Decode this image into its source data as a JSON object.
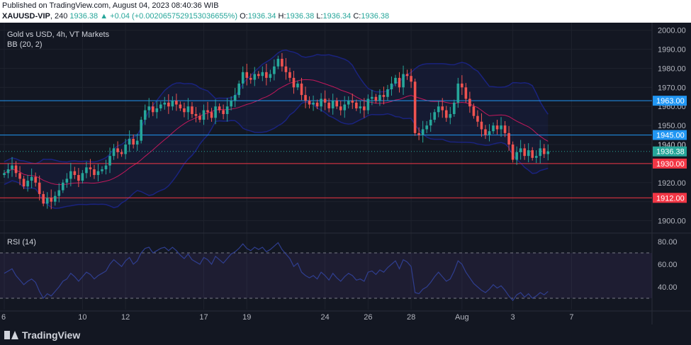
{
  "header": {
    "published": "Published on TradingView.com, August 04, 2023 08:40:36 WIB",
    "symbol": "XAUUSD-VIP",
    "interval": "240",
    "last": "1936.38",
    "change": "+0.04 (+0.002065752915303665 5%)",
    "change_text": "▲ +0.04 (+0.0020657529153036655%)",
    "o_label": "O:",
    "o": "1936.34",
    "h_label": "H:",
    "h": "1936.38",
    "l_label": "L:",
    "l": "1936.34",
    "c_label": "C:",
    "c": "1936.38"
  },
  "legend": {
    "title": "Gold vs USD, 4h, VT Markets",
    "indicator": "BB (20, 2)",
    "rsi": "RSI (14)"
  },
  "branding": {
    "name": "TradingView"
  },
  "colors": {
    "up": "#26a69a",
    "down": "#ef5350",
    "bb_basis": "#c2185b",
    "bb_band": "#1a237e",
    "blue_line": "#2196f3",
    "red_line": "#f23645",
    "rsi_line": "#2f3e8f"
  },
  "chart_data": [
    {
      "type": "candlestick",
      "series_name": "XAUUSD-VIP 4h",
      "y_ticks": [
        "1900.00",
        "1910.00",
        "1920.00",
        "1930.00",
        "1940.00",
        "1950.00",
        "1960.00",
        "1970.00",
        "1980.00",
        "1990.00",
        "2000.00"
      ],
      "ylim": [
        1895,
        2001
      ],
      "x_ticks": [
        {
          "label": "6",
          "index": 0
        },
        {
          "label": "10",
          "index": 20
        },
        {
          "label": "12",
          "index": 31
        },
        {
          "label": "17",
          "index": 51
        },
        {
          "label": "19",
          "index": 62
        },
        {
          "label": "24",
          "index": 82
        },
        {
          "label": "26",
          "index": 93
        },
        {
          "label": "28",
          "index": 104
        },
        {
          "label": "Aug",
          "index": 117
        },
        {
          "label": "3",
          "index": 130
        },
        {
          "label": "7",
          "index": 145
        }
      ],
      "current_price": {
        "value": 1936.38,
        "label": "1936.38"
      },
      "horizontal_lines": [
        {
          "value": 1963.0,
          "label": "1963.00",
          "color": "blue"
        },
        {
          "value": 1945.0,
          "label": "1945.00",
          "color": "blue"
        },
        {
          "value": 1930.0,
          "label": "1930.00",
          "color": "red"
        },
        {
          "value": 1912.0,
          "label": "1912.00",
          "color": "red"
        }
      ],
      "extra_tick": {
        "value": 1940.0,
        "label": "1940.00"
      },
      "closes": [
        1925,
        1927,
        1929,
        1925,
        1922,
        1918,
        1921,
        1923,
        1920,
        1914,
        1909,
        1912,
        1910,
        1913,
        1916,
        1920,
        1922,
        1926,
        1924,
        1921,
        1925,
        1928,
        1927,
        1924,
        1926,
        1927,
        1929,
        1934,
        1938,
        1936,
        1935,
        1940,
        1943,
        1940,
        1942,
        1953,
        1958,
        1960,
        1957,
        1959,
        1961,
        1962,
        1960,
        1963,
        1961,
        1959,
        1957,
        1960,
        1956,
        1955,
        1953,
        1958,
        1957,
        1954,
        1960,
        1958,
        1956,
        1960,
        1963,
        1966,
        1972,
        1978,
        1975,
        1974,
        1977,
        1976,
        1978,
        1975,
        1977,
        1981,
        1985,
        1981,
        1978,
        1975,
        1970,
        1972,
        1966,
        1963,
        1961,
        1962,
        1960,
        1964,
        1962,
        1959,
        1963,
        1960,
        1958,
        1961,
        1963,
        1962,
        1959,
        1960,
        1958,
        1964,
        1965,
        1963,
        1966,
        1965,
        1969,
        1972,
        1975,
        1970,
        1977,
        1976,
        1973,
        1946,
        1945,
        1948,
        1950,
        1953,
        1957,
        1960,
        1958,
        1954,
        1956,
        1962,
        1972,
        1970,
        1964,
        1960,
        1955,
        1952,
        1948,
        1945,
        1947,
        1950,
        1948,
        1950,
        1946,
        1940,
        1932,
        1936,
        1938,
        1934,
        1937,
        1933,
        1934,
        1938,
        1935,
        1936.38
      ]
    },
    {
      "type": "line",
      "series_name": "RSI (14)",
      "y_ticks": [
        "40.00",
        "60.00",
        "80.00"
      ],
      "ylim": [
        20,
        85
      ],
      "levels": [
        70,
        30
      ],
      "values": [
        52,
        54,
        56,
        50,
        46,
        42,
        45,
        47,
        44,
        36,
        30,
        34,
        32,
        36,
        40,
        45,
        47,
        52,
        49,
        45,
        49,
        53,
        51,
        47,
        50,
        52,
        54,
        60,
        64,
        61,
        58,
        63,
        66,
        60,
        63,
        70,
        74,
        75,
        70,
        72,
        74,
        75,
        72,
        75,
        72,
        68,
        65,
        69,
        64,
        62,
        60,
        66,
        64,
        60,
        67,
        64,
        61,
        65,
        69,
        71,
        74,
        78,
        74,
        72,
        75,
        73,
        75,
        71,
        73,
        76,
        79,
        73,
        69,
        65,
        58,
        61,
        53,
        50,
        48,
        50,
        47,
        53,
        50,
        46,
        52,
        48,
        45,
        49,
        52,
        50,
        46,
        47,
        45,
        53,
        54,
        51,
        55,
        53,
        57,
        60,
        63,
        56,
        64,
        62,
        58,
        35,
        34,
        38,
        40,
        44,
        49,
        53,
        49,
        45,
        47,
        54,
        63,
        60,
        53,
        48,
        43,
        40,
        37,
        35,
        38,
        42,
        39,
        41,
        37,
        32,
        28,
        33,
        35,
        31,
        34,
        30,
        32,
        35,
        33,
        36
      ]
    }
  ]
}
